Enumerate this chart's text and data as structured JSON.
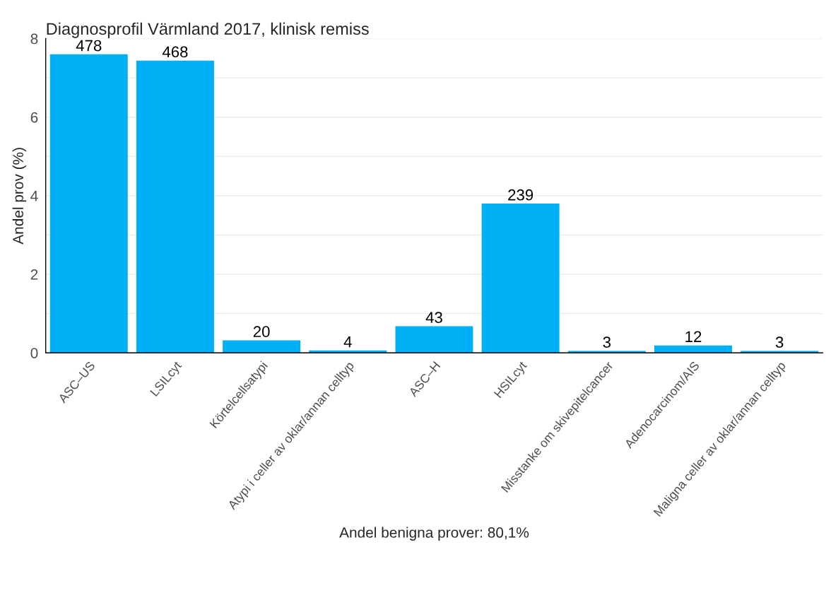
{
  "chart_data": {
    "type": "bar",
    "title": "Diagnosprofil Värmland 2017, klinisk remiss",
    "xlabel": "Andel benigna prover: 80,1%",
    "ylabel": "Andel prov (%)",
    "categories": [
      "ASC–US",
      "LSILcyt",
      "Körtelcellsatypi",
      "Atypi i celler av oklar/annan celltyp",
      "ASC–H",
      "HSILcyt",
      "Misstanke om skivepitelcancer",
      "Adenocarcinom/AIS",
      "Maligna celler av oklar/annan celltyp"
    ],
    "values": [
      7.6,
      7.44,
      0.32,
      0.06,
      0.68,
      3.8,
      0.05,
      0.19,
      0.05
    ],
    "annotations": [
      {
        "text": "478",
        "x": "ASC–US",
        "y": 7.6
      },
      {
        "text": "468",
        "x": "LSILcyt",
        "y": 7.44
      },
      {
        "text": "20",
        "x": "Körtelcellsatypi",
        "y": 0.32
      },
      {
        "text": "4",
        "x": "Atypi i celler av oklar/annan celltyp",
        "y": 0.06
      },
      {
        "text": "43",
        "x": "ASC–H",
        "y": 0.68
      },
      {
        "text": "239",
        "x": "HSILcyt",
        "y": 3.8
      },
      {
        "text": "3",
        "x": "Misstanke om skivepitelcancer",
        "y": 0.05
      },
      {
        "text": "12",
        "x": "Adenocarcinom/AIS",
        "y": 0.19
      },
      {
        "text": "3",
        "x": "Maligna celler av oklar/annan celltyp",
        "y": 0.05
      }
    ],
    "color": "#00b0f6",
    "ylim": [
      0,
      8
    ],
    "yticks": [
      0,
      {
        "value": 1,
        "label": null
      },
      2,
      {
        "value": 3,
        "label": null
      },
      4,
      {
        "value": 5,
        "label": null
      },
      6,
      {
        "value": 7,
        "label": null
      },
      8
    ],
    "grid": "y"
  }
}
